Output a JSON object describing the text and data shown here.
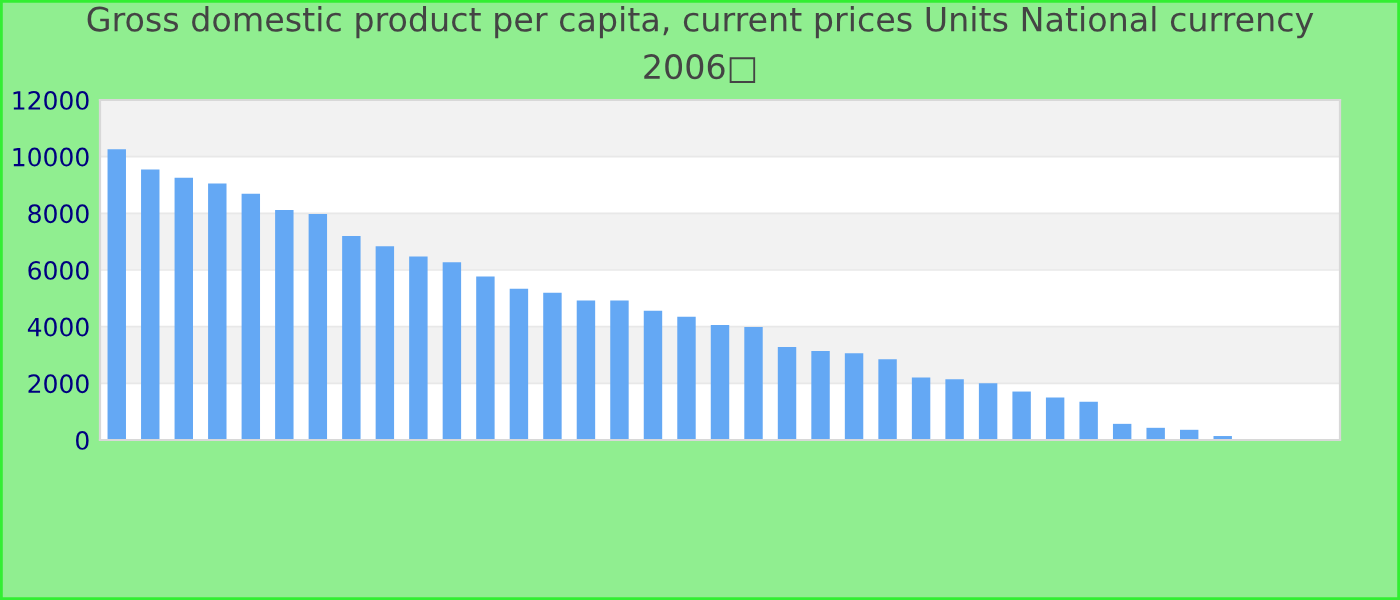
{
  "chart_data": {
    "type": "bar",
    "title": "Gross domestic product per capita, current prices Units National currency\n2006□",
    "categories": [
      null,
      null,
      null,
      null,
      null,
      null,
      null,
      null,
      null,
      null,
      null,
      null,
      null,
      null,
      null,
      null,
      null,
      null,
      null,
      null,
      null,
      null,
      null,
      null,
      null,
      null,
      null,
      null,
      null,
      null,
      null,
      null,
      null,
      null,
      null,
      null,
      null
    ],
    "values": [
      10260,
      9550,
      9260,
      9050,
      8690,
      8120,
      7980,
      7200,
      6840,
      6480,
      6270,
      5770,
      5340,
      5200,
      4920,
      4920,
      4560,
      4350,
      4060,
      3990,
      3280,
      3140,
      3060,
      2850,
      2210,
      2140,
      2000,
      1710,
      1500,
      1350,
      570,
      430,
      360,
      140,
      null,
      null,
      null
    ],
    "color": "#64a8f4",
    "ylim": [
      0,
      12000
    ],
    "yticks": [
      0,
      2000,
      4000,
      6000,
      8000,
      10000,
      12000
    ],
    "grid": "y"
  }
}
